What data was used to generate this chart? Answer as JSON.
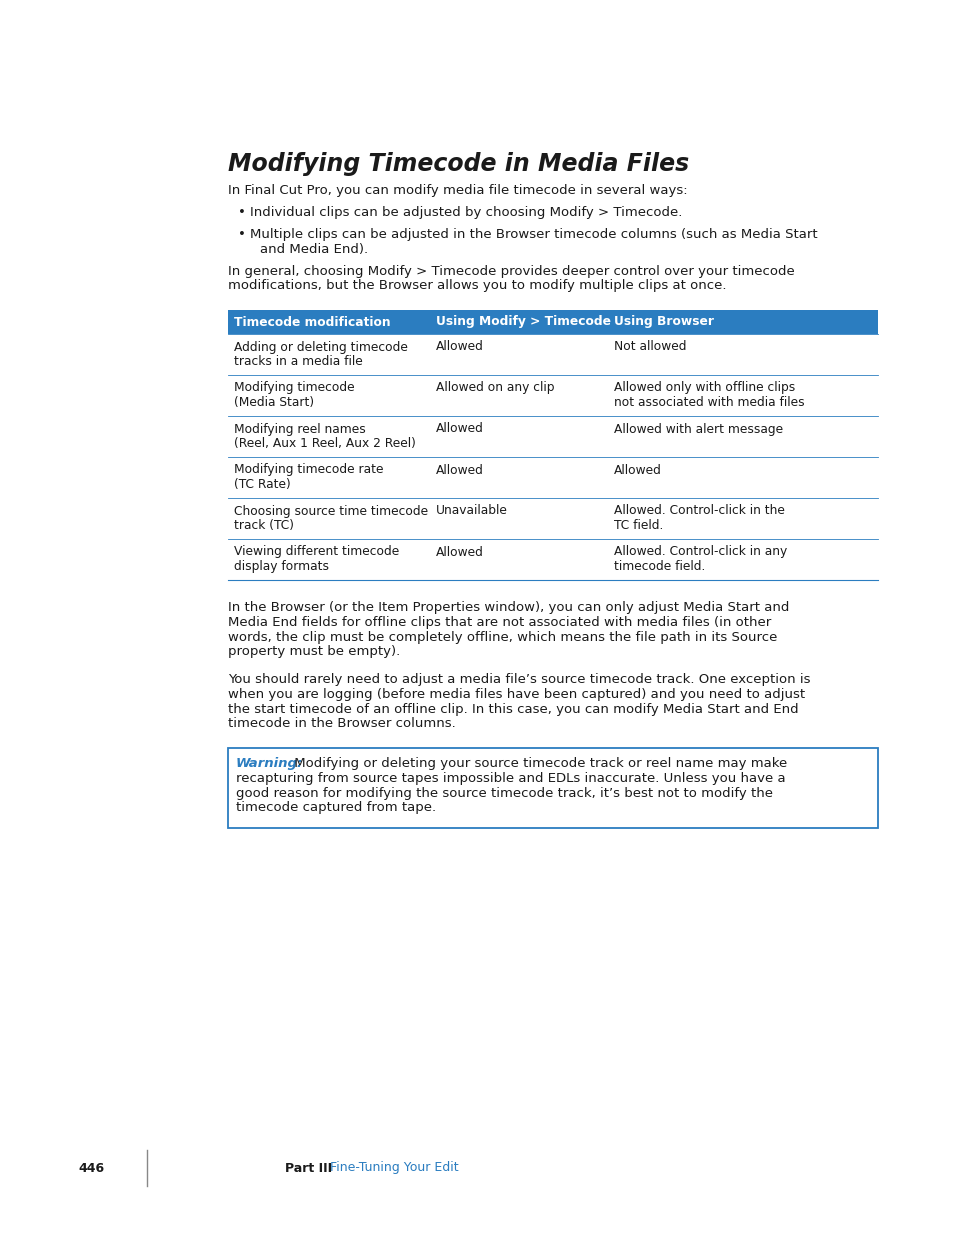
{
  "title": "Modifying Timecode in Media Files",
  "intro_text": "In Final Cut Pro, you can modify media file timecode in several ways:",
  "bullets": [
    "Individual clips can be adjusted by choosing Modify > Timecode.",
    "Multiple clips can be adjusted in the Browser timecode columns (such as Media Start\nand Media End)."
  ],
  "middle_text": "In general, choosing Modify > Timecode provides deeper control over your timecode\nmodifications, but the Browser allows you to modify multiple clips at once.",
  "table_header": [
    "Timecode modification",
    "Using Modify > Timecode",
    "Using Browser"
  ],
  "table_header_bg": "#2b7dc0",
  "table_header_color": "#ffffff",
  "table_rows": [
    [
      "Adding or deleting timecode\ntracks in a media file",
      "Allowed",
      "Not allowed"
    ],
    [
      "Modifying timecode\n(Media Start)",
      "Allowed on any clip",
      "Allowed only with offline clips\nnot associated with media files"
    ],
    [
      "Modifying reel names\n(Reel, Aux 1 Reel, Aux 2 Reel)",
      "Allowed",
      "Allowed with alert message"
    ],
    [
      "Modifying timecode rate\n(TC Rate)",
      "Allowed",
      "Allowed"
    ],
    [
      "Choosing source time timecode\ntrack (TC)",
      "Unavailable",
      "Allowed. Control-click in the\nTC field."
    ],
    [
      "Viewing different timecode\ndisplay formats",
      "Allowed",
      "Allowed. Control-click in any\ntimecode field."
    ]
  ],
  "table_divider_color": "#2b7dc0",
  "para1": "In the Browser (or the Item Properties window), you can only adjust Media Start and\nMedia End fields for offline clips that are not associated with media files (in other\nwords, the clip must be completely offline, which means the file path in its Source\nproperty must be empty).",
  "para2": "You should rarely need to adjust a media file’s source timecode track. One exception is\nwhen you are logging (before media files have been captured) and you need to adjust\nthe start timecode of an offline clip. In this case, you can modify Media Start and End\ntimecode in the Browser columns.",
  "warning_label": "Warning:",
  "warning_line1": " Modifying or deleting your source timecode track or reel name may make",
  "warning_lines": [
    "recapturing from source tapes impossible and EDLs inaccurate. Unless you have a",
    "good reason for modifying the source timecode track, it’s best not to modify the",
    "timecode captured from tape."
  ],
  "warning_border_color": "#2b7dc0",
  "warning_label_color": "#2b7dc0",
  "footer_page": "446",
  "footer_part": "Part III",
  "footer_section": "Fine-Tuning Your Edit",
  "footer_section_color": "#2b7dc0",
  "bg_color": "#ffffff",
  "text_color": "#1a1a1a",
  "body_fontsize": 9.5,
  "title_fontsize": 17
}
